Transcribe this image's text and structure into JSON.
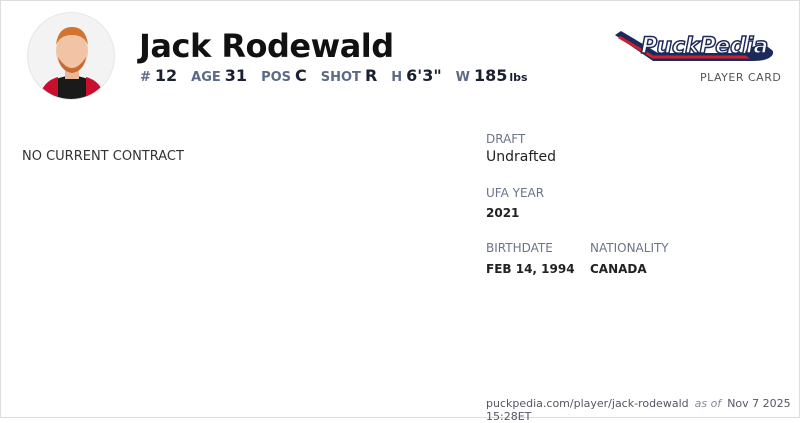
{
  "player": {
    "name": "Jack Rodewald",
    "number_label": "#",
    "number": "12",
    "age_label": "AGE",
    "age": "31",
    "pos_label": "POS",
    "pos": "C",
    "shot_label": "SHOT",
    "shot": "R",
    "height_label": "H",
    "height": "6'3\"",
    "weight_label": "W",
    "weight": "185",
    "weight_unit": "lbs"
  },
  "brand": {
    "logo_text": "PuckPedia",
    "subtitle": "PLAYER CARD",
    "colors": {
      "navy": "#1c2a5a",
      "red": "#d0202e"
    }
  },
  "contract": {
    "status": "NO CURRENT CONTRACT"
  },
  "details": {
    "draft_label": "DRAFT",
    "draft": "Undrafted",
    "ufa_label": "UFA YEAR",
    "ufa": "2021",
    "birth_label": "BIRTHDATE",
    "birth": "FEB 14, 1994",
    "nat_label": "NATIONALITY",
    "nat": "CANADA"
  },
  "footer": {
    "url": "puckpedia.com/player/jack-rodewald",
    "as_of": "as of",
    "timestamp": "Nov 7 2025 15:28ET"
  }
}
